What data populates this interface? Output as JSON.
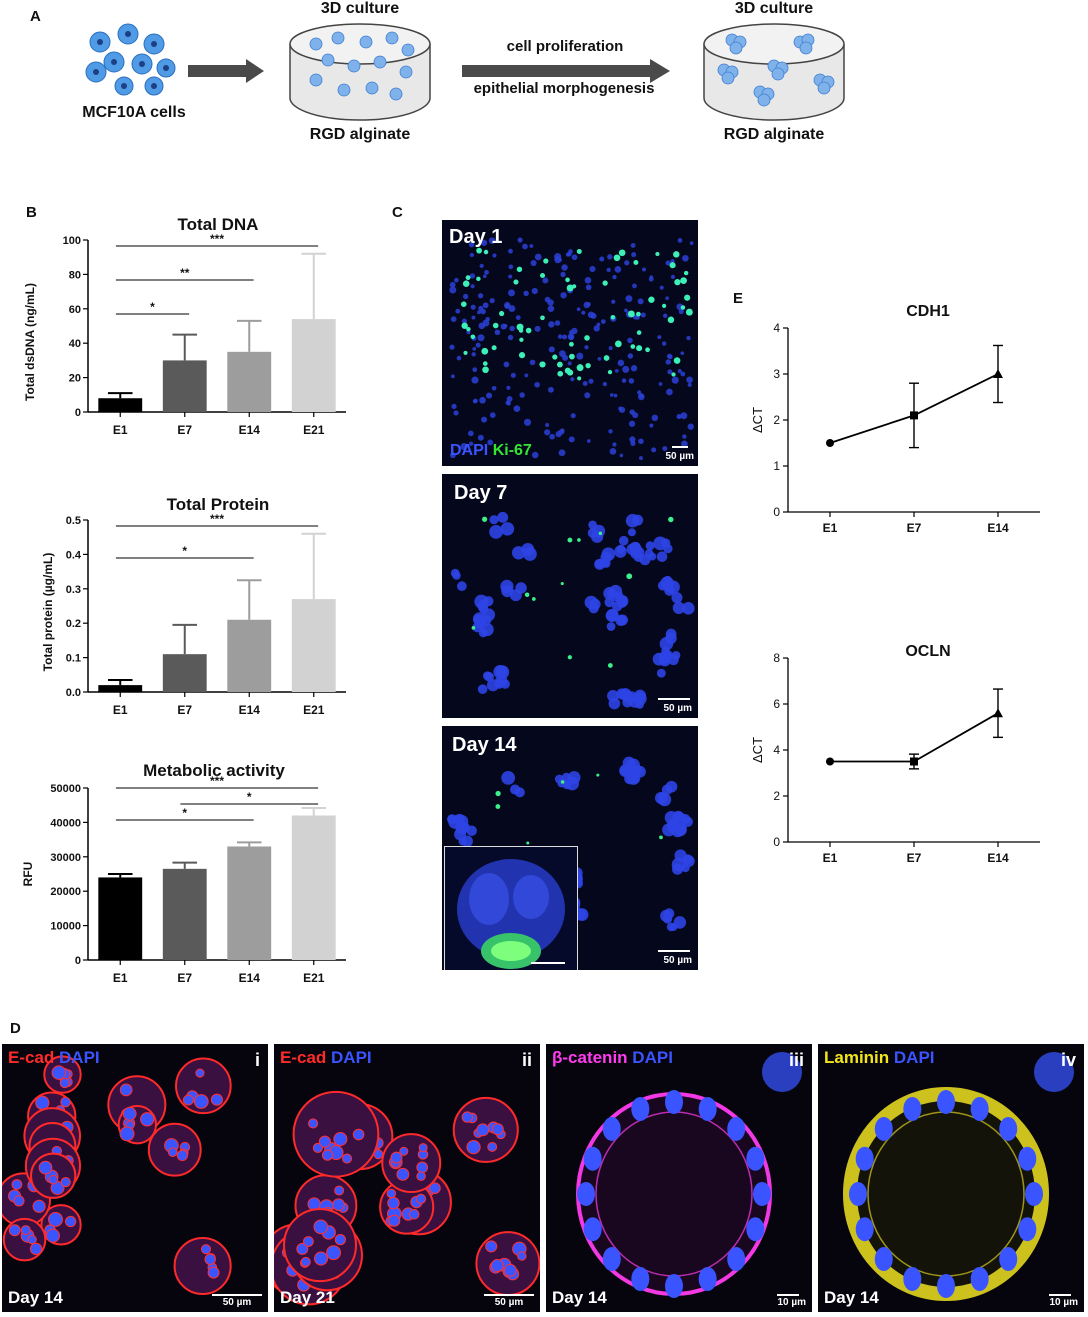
{
  "panel_labels": {
    "A": "A",
    "B": "B",
    "C": "C",
    "D": "D",
    "E": "E"
  },
  "schematic": {
    "cells_label": "MCF10A cells",
    "culture1_title": "3D culture",
    "culture1_label": "RGD alginate",
    "arrow2_top": "cell proliferation",
    "arrow2_bottom": "epithelial morphogenesis",
    "culture2_title": "3D culture",
    "culture2_label": "RGD alginate"
  },
  "panel_c": {
    "day1": {
      "title": "Day 1",
      "stain_dapi": "DAPI",
      "stain_ki67": "Ki-67",
      "scale": "50 µm"
    },
    "day7": {
      "title": "Day 7",
      "scale": "50 µm"
    },
    "day14": {
      "title": "Day 14",
      "scale": "50 µm"
    }
  },
  "panel_d": [
    {
      "stain1": "E-cad",
      "stain2": "DAPI",
      "roman": "i",
      "day": "Day 14",
      "scale": "50 µm"
    },
    {
      "stain1": "E-cad",
      "stain2": "DAPI",
      "roman": "ii",
      "day": "Day 21",
      "scale": "50 µm"
    },
    {
      "stain1": "β-catenin",
      "stain2": "DAPI",
      "roman": "iii",
      "day": "Day 14",
      "scale": "10 µm"
    },
    {
      "stain1": "Laminin",
      "stain2": "DAPI",
      "roman": "iv",
      "day": "Day 14",
      "scale": "10 µm"
    }
  ],
  "colors": {
    "e1": "#000000",
    "e7": "#5a5a5a",
    "e14": "#9d9d9d",
    "e21": "#d2d2d2",
    "dapi": "#3a54ff",
    "ki67": "#32e632",
    "ecad": "#ff2a2a",
    "bcat": "#ff3cf0",
    "laminin": "#f2e61a"
  },
  "chart_data": [
    {
      "id": "dna",
      "type": "bar",
      "title": "Total DNA",
      "xlabel": "",
      "ylabel": "Total dsDNA (ng/mL)",
      "categories": [
        "E1",
        "E7",
        "E14",
        "E21"
      ],
      "values": [
        8,
        30,
        35,
        54
      ],
      "errors": [
        3,
        15,
        18,
        38
      ],
      "ylim": [
        0,
        100
      ],
      "yticks": [
        "0",
        "20",
        "40",
        "60",
        "80",
        "100"
      ],
      "significance": [
        {
          "from": 0,
          "to": 1,
          "label": "*"
        },
        {
          "from": 0,
          "to": 2,
          "label": "**"
        },
        {
          "from": 0,
          "to": 3,
          "label": "***"
        }
      ]
    },
    {
      "id": "protein",
      "type": "bar",
      "title": "Total Protein",
      "xlabel": "",
      "ylabel": "Total protein (µg/mL)",
      "categories": [
        "E1",
        "E7",
        "E14",
        "E21"
      ],
      "values": [
        0.02,
        0.11,
        0.21,
        0.27
      ],
      "errors": [
        0.015,
        0.085,
        0.115,
        0.19
      ],
      "ylim": [
        0,
        0.5
      ],
      "yticks": [
        "0.0",
        "0.1",
        "0.2",
        "0.3",
        "0.4",
        "0.5"
      ],
      "significance": [
        {
          "from": 0,
          "to": 2,
          "label": "*"
        },
        {
          "from": 0,
          "to": 3,
          "label": "***"
        }
      ]
    },
    {
      "id": "metabolic",
      "type": "bar",
      "title": "Metabolic activity",
      "xlabel": "",
      "ylabel": "RFU",
      "categories": [
        "E1",
        "E7",
        "E14",
        "E21"
      ],
      "values": [
        24000,
        26500,
        33000,
        42000
      ],
      "errors": [
        1000,
        1800,
        1200,
        2200
      ],
      "ylim": [
        0,
        50000
      ],
      "yticks": [
        "0",
        "10000",
        "20000",
        "30000",
        "40000",
        "50000"
      ],
      "significance": [
        {
          "from": 0,
          "to": 2,
          "label": "*"
        },
        {
          "from": 1,
          "to": 3,
          "label": "*"
        },
        {
          "from": 0,
          "to": 3,
          "label": "***"
        }
      ]
    },
    {
      "id": "cdh1",
      "type": "line",
      "title": "CDH1",
      "xlabel": "",
      "ylabel": "ΔCT",
      "categories": [
        "E1",
        "E7",
        "E14"
      ],
      "values": [
        1.5,
        2.1,
        3.0
      ],
      "errors": [
        0,
        0.7,
        0.62
      ],
      "markers": [
        "circle",
        "square",
        "triangle"
      ],
      "ylim": [
        0,
        4
      ],
      "yticks": [
        "0",
        "1",
        "2",
        "3",
        "4"
      ]
    },
    {
      "id": "ocln",
      "type": "line",
      "title": "OCLN",
      "xlabel": "",
      "ylabel": "ΔCT",
      "categories": [
        "E1",
        "E7",
        "E14"
      ],
      "values": [
        3.5,
        3.5,
        5.6
      ],
      "errors": [
        0,
        0.32,
        1.05
      ],
      "markers": [
        "circle",
        "square",
        "triangle"
      ],
      "ylim": [
        0,
        8
      ],
      "yticks": [
        "0",
        "2",
        "4",
        "6",
        "8"
      ]
    }
  ]
}
